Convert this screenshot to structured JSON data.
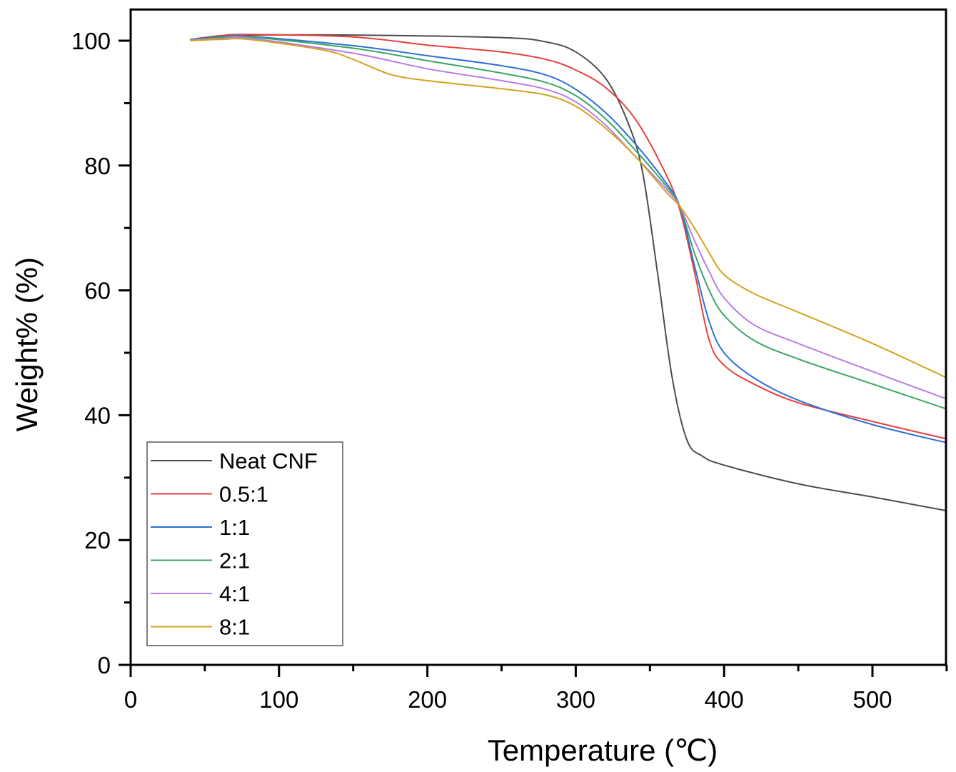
{
  "chart_data": {
    "type": "line",
    "title": "",
    "xlabel": "Temperature (℃)",
    "ylabel": "Weight% (%)",
    "xlim": [
      0,
      550
    ],
    "ylim": [
      0,
      105
    ],
    "xticks": [
      0,
      100,
      200,
      300,
      400,
      500
    ],
    "xticks_minor": [
      50,
      150,
      250,
      350,
      450,
      550
    ],
    "yticks": [
      0,
      20,
      40,
      60,
      80,
      100
    ],
    "yticks_minor": [
      10,
      30,
      50,
      70,
      90
    ],
    "xtick_labels": [
      "0",
      "100",
      "200",
      "300",
      "400",
      "500"
    ],
    "ytick_labels": [
      "0",
      "20",
      "40",
      "60",
      "80",
      "100"
    ],
    "grid": false,
    "legend_position": "bottom-left",
    "series": [
      {
        "name": "Neat CNF",
        "color": "#4d4d4d",
        "x": [
          40,
          60,
          80,
          150,
          250,
          280,
          300,
          320,
          335,
          345,
          355,
          365,
          375,
          385,
          400,
          450,
          500,
          550
        ],
        "y": [
          100.2,
          100.7,
          100.9,
          100.9,
          100.5,
          99.8,
          98.2,
          94,
          87,
          79,
          63,
          46,
          36,
          33.5,
          32,
          29,
          26.9,
          24.7
        ]
      },
      {
        "name": "0.5:1",
        "color": "#e8413c",
        "x": [
          40,
          60,
          80,
          150,
          200,
          250,
          280,
          300,
          320,
          340,
          360,
          370,
          380,
          390,
          400,
          420,
          450,
          500,
          550
        ],
        "y": [
          100.2,
          100.8,
          101,
          100.6,
          99.3,
          98.2,
          97,
          95.3,
          92.5,
          87.5,
          79,
          73,
          63,
          52,
          48,
          45,
          42,
          39,
          36.2
        ]
      },
      {
        "name": "1:1",
        "color": "#2f6fd6",
        "x": [
          40,
          60,
          80,
          150,
          200,
          250,
          280,
          300,
          320,
          340,
          360,
          370,
          380,
          390,
          400,
          420,
          450,
          500,
          550
        ],
        "y": [
          100.2,
          100.6,
          100.7,
          99.2,
          97.6,
          96,
          94.5,
          92.2,
          88.5,
          83.5,
          77.5,
          73.5,
          64,
          55,
          50,
          46,
          42.4,
          38.5,
          35.6
        ]
      },
      {
        "name": "2:1",
        "color": "#3aa665",
        "x": [
          40,
          60,
          80,
          150,
          200,
          250,
          280,
          300,
          320,
          340,
          360,
          370,
          380,
          390,
          400,
          420,
          450,
          500,
          550
        ],
        "y": [
          100.1,
          100.5,
          100.6,
          98.8,
          96.8,
          94.8,
          93.3,
          91.2,
          87.5,
          82.5,
          77,
          73.5,
          66,
          60,
          56,
          52,
          49,
          45,
          41
        ]
      },
      {
        "name": "4:1",
        "color": "#b77ee8",
        "x": [
          40,
          60,
          80,
          150,
          200,
          250,
          280,
          300,
          320,
          340,
          360,
          370,
          380,
          390,
          400,
          420,
          450,
          500,
          550
        ],
        "y": [
          100.1,
          100.3,
          100.4,
          98,
          95.5,
          93.6,
          92.2,
          90.2,
          86.5,
          81.5,
          76.5,
          73.5,
          68,
          63,
          58.8,
          54.5,
          51.5,
          47,
          42.6
        ]
      },
      {
        "name": "8:1",
        "color": "#d4a21c",
        "x": [
          40,
          60,
          80,
          130,
          150,
          175,
          200,
          250,
          280,
          300,
          320,
          340,
          360,
          370,
          380,
          390,
          400,
          420,
          450,
          500,
          550
        ],
        "y": [
          100,
          100.2,
          100.2,
          98.5,
          97,
          94.6,
          93.6,
          92.3,
          91.3,
          89.5,
          86,
          81.5,
          76,
          73.5,
          70,
          66,
          62.5,
          59.5,
          56.5,
          51.5,
          46
        ]
      }
    ]
  }
}
